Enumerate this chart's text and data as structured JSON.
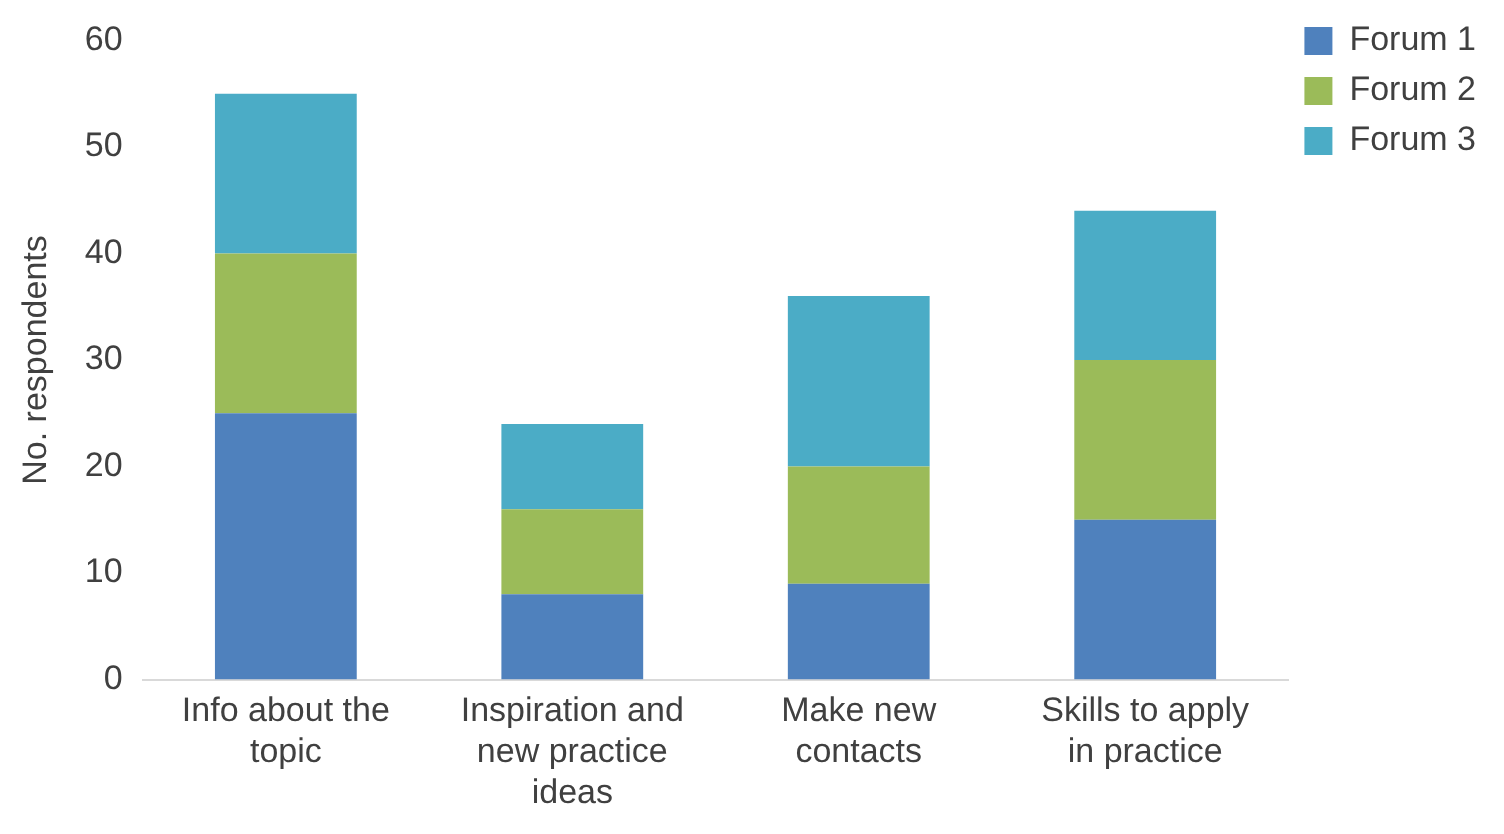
{
  "chart_data": {
    "type": "bar",
    "stacked": true,
    "ylabel": "No. respondents",
    "categories": [
      "Info about the topic",
      "Inspiration and new practice ideas",
      "Make new contacts",
      "Skills to apply in practice"
    ],
    "series": [
      {
        "name": "Forum 1",
        "color": "#4f81bd",
        "values": [
          25,
          8,
          9,
          15
        ]
      },
      {
        "name": "Forum 2",
        "color": "#9bbb59",
        "values": [
          15,
          8,
          11,
          15
        ]
      },
      {
        "name": "Forum 3",
        "color": "#4bacc6",
        "values": [
          15,
          8,
          16,
          14
        ]
      }
    ],
    "ylim": [
      0,
      60
    ],
    "yticks": [
      0,
      10,
      20,
      30,
      40,
      50,
      60
    ],
    "grid": false,
    "legend": "top right"
  }
}
